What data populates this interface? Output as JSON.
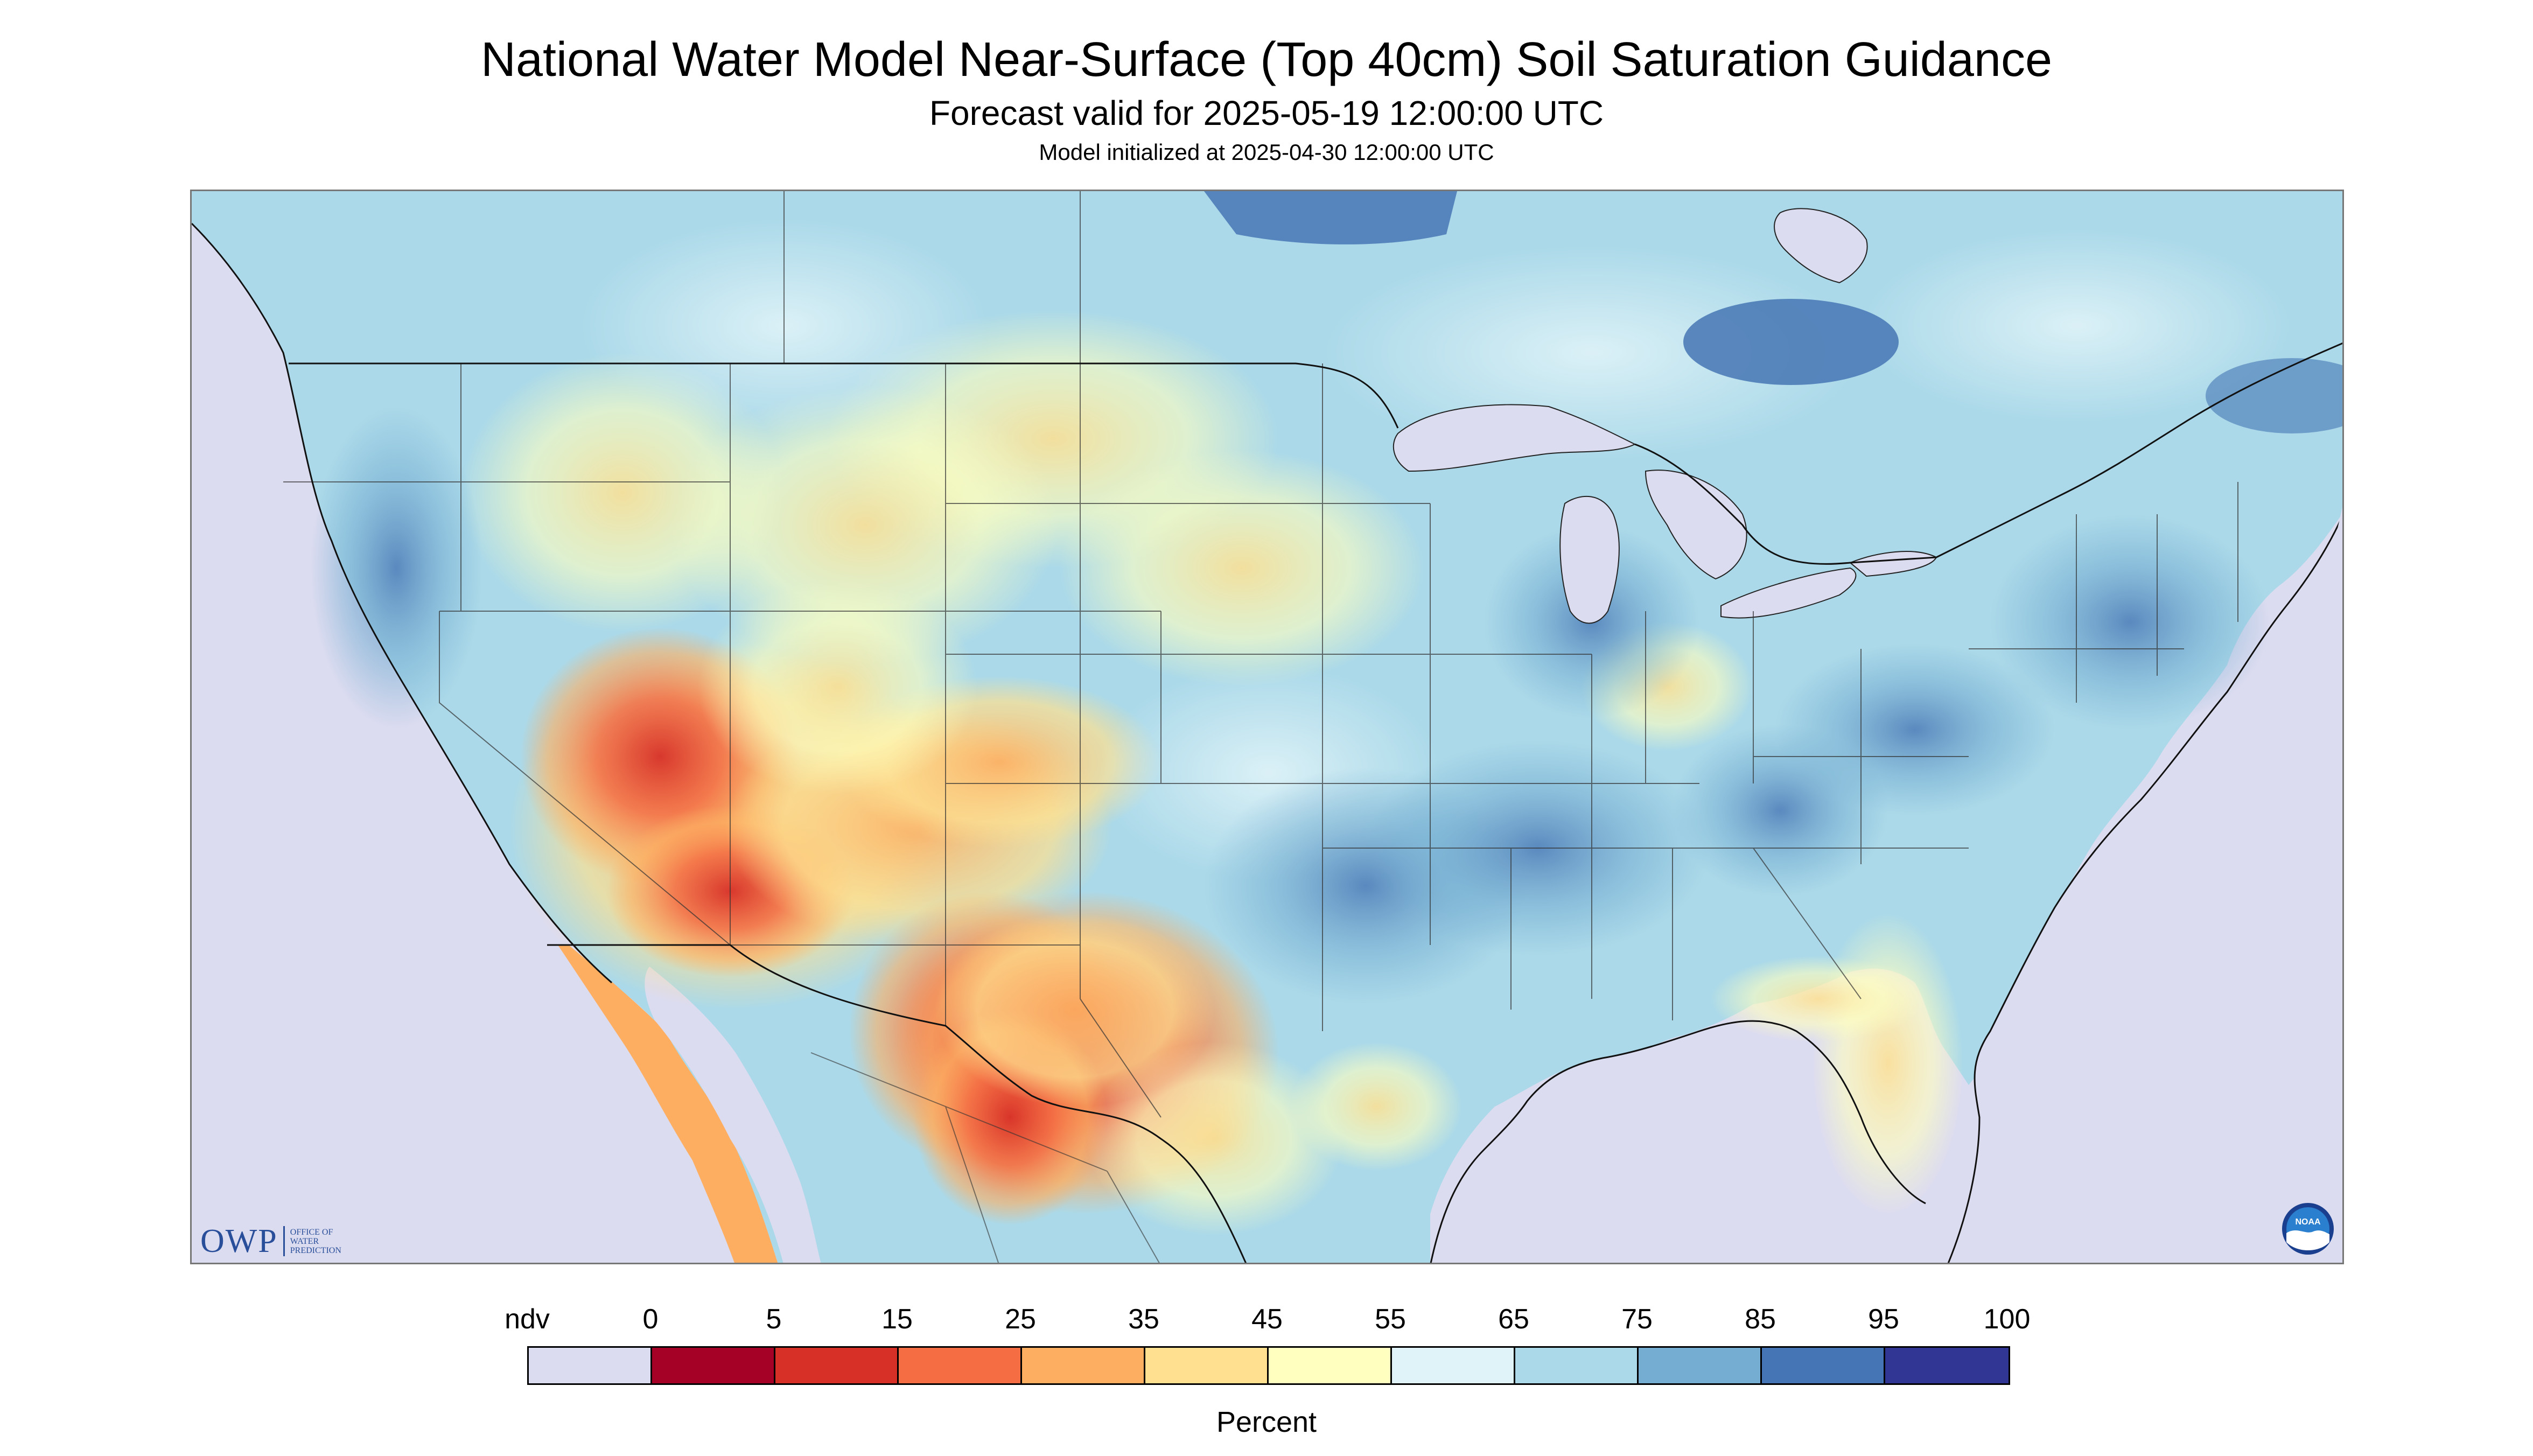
{
  "header": {
    "title": "National Water Model Near-Surface (Top 40cm) Soil Saturation Guidance",
    "subtitle": "Forecast valid for 2025-05-19 12:00:00 UTC",
    "init_line": "Model initialized at 2025-04-30 12:00:00 UTC"
  },
  "logos": {
    "owp_main": "OWP",
    "owp_small": [
      "OFFICE OF",
      "WATER",
      "PREDICTION"
    ],
    "noaa": "NOAA"
  },
  "legend": {
    "labels": [
      "ndv",
      "0",
      "5",
      "15",
      "25",
      "35",
      "45",
      "55",
      "65",
      "75",
      "85",
      "95",
      "100"
    ],
    "colors": [
      "#dcdcf0",
      "#a50026",
      "#d73027",
      "#f46d43",
      "#fdae61",
      "#fee090",
      "#ffffbf",
      "#e0f3f8",
      "#abd9e9",
      "#74add1",
      "#4575b4",
      "#313695"
    ],
    "unit": "Percent"
  },
  "map_colors": {
    "ndv": "#dcdcf0",
    "land_base": "#abd9e9",
    "border": "#333333",
    "water": "#dcdcf0"
  }
}
